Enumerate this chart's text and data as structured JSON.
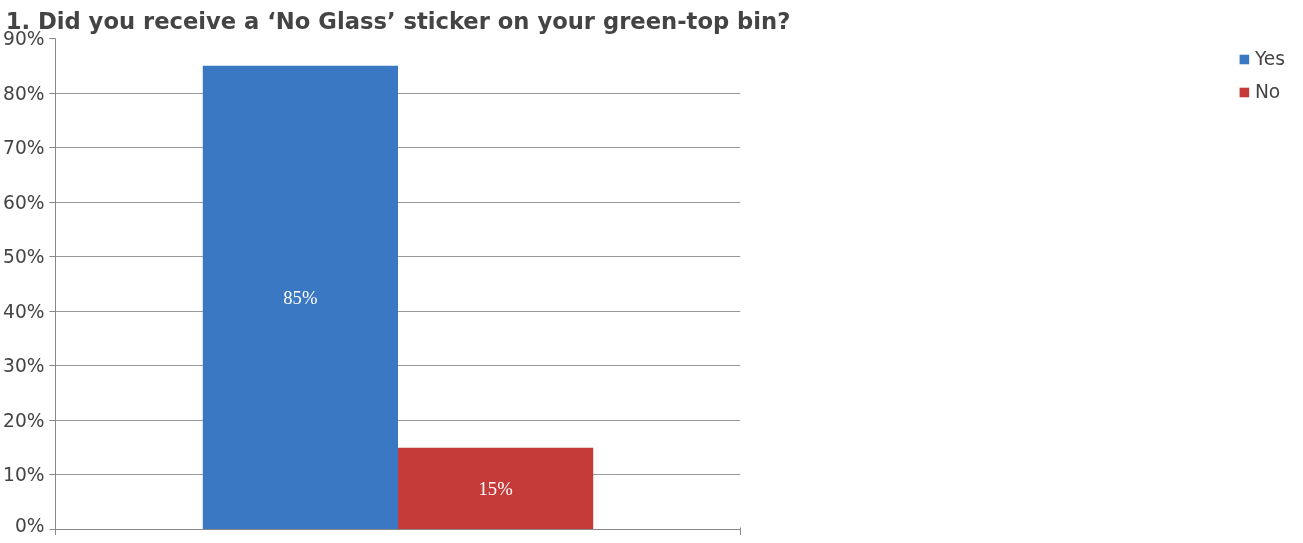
{
  "chart_data": {
    "type": "bar",
    "title": "1. Did you receive a ‘No Glass’ sticker on your green-top bin?",
    "categories": [
      null
    ],
    "series": [
      {
        "name": "Yes",
        "color": "#3a78c4",
        "values": [
          85
        ],
        "value_labels": [
          "85%"
        ]
      },
      {
        "name": "No",
        "color": "#c43b3a",
        "values": [
          15
        ],
        "value_labels": [
          "15%"
        ]
      }
    ],
    "ylim": [
      0,
      90
    ],
    "yticks": [
      {
        "value": 0,
        "label": "0%"
      },
      {
        "value": 10,
        "label": "10%"
      },
      {
        "value": 20,
        "label": "20%"
      },
      {
        "value": 30,
        "label": "30%"
      },
      {
        "value": 40,
        "label": "40%"
      },
      {
        "value": 50,
        "label": "50%"
      },
      {
        "value": 60,
        "label": "60%"
      },
      {
        "value": 70,
        "label": "70%"
      },
      {
        "value": 80,
        "label": "80%"
      },
      {
        "value": 90,
        "label": "90%"
      }
    ],
    "grid": "y",
    "legend": "right"
  }
}
